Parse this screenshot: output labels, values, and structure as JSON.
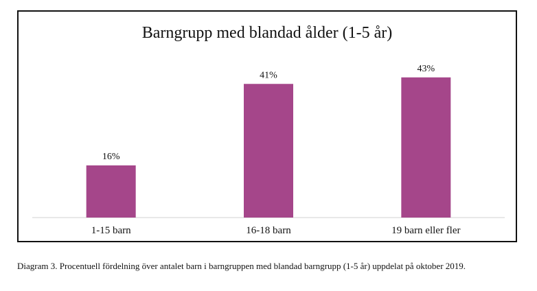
{
  "chart_data": {
    "type": "bar",
    "title": "Barngrupp med blandad ålder (1-5 år)",
    "categories": [
      "1-15 barn",
      "16-18 barn",
      "19 barn eller fler"
    ],
    "values": [
      16,
      41,
      43
    ],
    "data_labels": [
      "16%",
      "41%",
      "43%"
    ],
    "unit": "%",
    "xlabel": "",
    "ylabel": "",
    "ylim": [
      0,
      50
    ],
    "grid": false,
    "legend": "none",
    "bar_color": "#a5468a"
  },
  "caption": "Diagram 3. Procentuell fördelning över antalet barn i barngruppen med blandad barngrupp (1-5 år) uppdelat på oktober 2019."
}
